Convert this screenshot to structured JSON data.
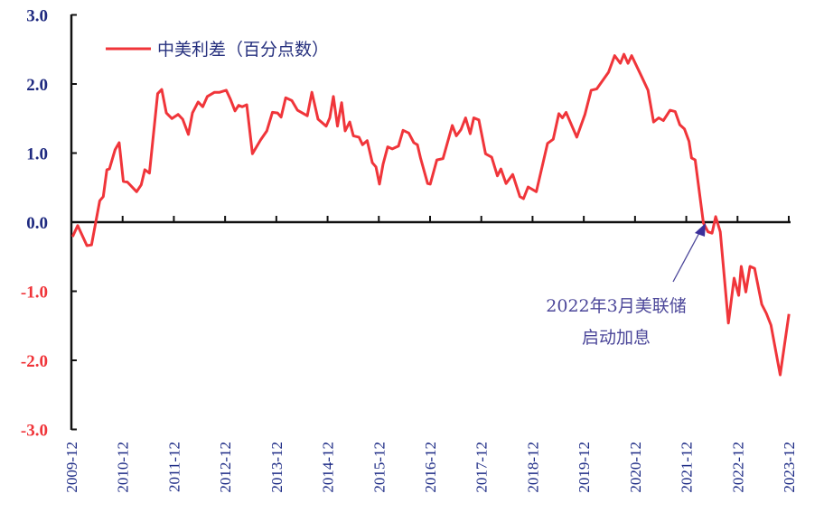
{
  "chart_data": {
    "type": "line",
    "title": "",
    "xlabel": "",
    "ylabel": "",
    "ylim": [
      -3.0,
      3.0
    ],
    "yticks": [
      "3.0",
      "2.0",
      "1.0",
      "0.0",
      "-1.0",
      "-2.0",
      "-3.0"
    ],
    "ytick_values": [
      3,
      2,
      1,
      0,
      -1,
      -2,
      -3
    ],
    "xticks": [
      "2009-12",
      "2010-12",
      "2011-12",
      "2012-12",
      "2013-12",
      "2014-12",
      "2015-12",
      "2016-12",
      "2017-12",
      "2018-12",
      "2019-12",
      "2020-12",
      "2021-12",
      "2022-12",
      "2023-12"
    ],
    "xlim_years": [
      2009.917,
      2023.917
    ],
    "grid": false,
    "legend_placement": "top-left",
    "colors": {
      "series": "#f0353a",
      "axis": "#111111",
      "pos_tick": "#1f2a80",
      "neg_tick": "#f0353a",
      "annotation": "#4b4699"
    },
    "series": [
      {
        "name": "中美利差（百分点数）",
        "x": [
          2009.94,
          2010.04,
          2010.22,
          2010.31,
          2010.47,
          2010.54,
          2010.61,
          2010.66,
          2010.77,
          2010.85,
          2010.93,
          2011.01,
          2011.19,
          2011.28,
          2011.35,
          2011.44,
          2011.6,
          2011.68,
          2011.77,
          2011.88,
          2012.0,
          2012.09,
          2012.2,
          2012.28,
          2012.39,
          2012.48,
          2012.57,
          2012.71,
          2012.81,
          2012.94,
          2013.02,
          2013.11,
          2013.18,
          2013.25,
          2013.34,
          2013.45,
          2013.61,
          2013.73,
          2013.84,
          2013.94,
          2014.01,
          2014.1,
          2014.22,
          2014.33,
          2014.52,
          2014.61,
          2014.73,
          2014.81,
          2014.89,
          2014.96,
          2015.03,
          2015.11,
          2015.19,
          2015.26,
          2015.35,
          2015.42,
          2015.53,
          2015.6,
          2015.69,
          2015.79,
          2015.86,
          2015.93,
          2016.0,
          2016.09,
          2016.18,
          2016.3,
          2016.39,
          2016.5,
          2016.6,
          2016.67,
          2016.73,
          2016.87,
          2016.92,
          2017.05,
          2017.17,
          2017.35,
          2017.43,
          2017.52,
          2017.61,
          2017.7,
          2017.77,
          2017.87,
          2018.0,
          2018.12,
          2018.23,
          2018.3,
          2018.4,
          2018.53,
          2018.67,
          2018.74,
          2018.83,
          2018.99,
          2019.21,
          2019.32,
          2019.43,
          2019.5,
          2019.57,
          2019.78,
          2019.94,
          2020.06,
          2020.17,
          2020.4,
          2020.52,
          2020.63,
          2020.7,
          2020.78,
          2020.85,
          2021.05,
          2021.17,
          2021.28,
          2021.38,
          2021.47,
          2021.6,
          2021.7,
          2021.79,
          2021.88,
          2021.97,
          2022.02,
          2022.09,
          2022.25,
          2022.34,
          2022.42,
          2022.49,
          2022.58,
          2022.74,
          2022.85,
          2022.94,
          2022.99,
          2023.08,
          2023.16,
          2023.25,
          2023.39,
          2023.48,
          2023.57,
          2023.75,
          2023.92
        ],
        "values": [
          -0.21,
          -0.05,
          -0.34,
          -0.33,
          0.31,
          0.37,
          0.76,
          0.77,
          1.05,
          1.15,
          0.59,
          0.58,
          0.44,
          0.54,
          0.76,
          0.71,
          1.86,
          1.92,
          1.58,
          1.5,
          1.56,
          1.49,
          1.27,
          1.58,
          1.74,
          1.67,
          1.82,
          1.88,
          1.88,
          1.91,
          1.78,
          1.61,
          1.69,
          1.67,
          1.7,
          0.99,
          1.19,
          1.32,
          1.59,
          1.58,
          1.52,
          1.8,
          1.76,
          1.62,
          1.54,
          1.88,
          1.49,
          1.44,
          1.39,
          1.51,
          1.82,
          1.39,
          1.73,
          1.32,
          1.45,
          1.25,
          1.23,
          1.12,
          1.18,
          0.86,
          0.8,
          0.55,
          0.84,
          1.09,
          1.06,
          1.1,
          1.33,
          1.29,
          1.15,
          1.12,
          0.93,
          0.56,
          0.55,
          0.9,
          0.92,
          1.4,
          1.25,
          1.34,
          1.51,
          1.28,
          1.51,
          1.48,
          0.99,
          0.94,
          0.67,
          0.77,
          0.56,
          0.69,
          0.37,
          0.34,
          0.51,
          0.44,
          1.14,
          1.2,
          1.57,
          1.51,
          1.59,
          1.23,
          1.56,
          1.91,
          1.93,
          2.17,
          2.41,
          2.3,
          2.43,
          2.3,
          2.41,
          2.1,
          1.91,
          1.45,
          1.51,
          1.47,
          1.62,
          1.6,
          1.41,
          1.35,
          1.17,
          0.93,
          0.9,
          -0.01,
          -0.14,
          -0.16,
          0.08,
          -0.14,
          -1.46,
          -0.81,
          -1.06,
          -0.64,
          -1.01,
          -0.64,
          -0.67,
          -1.19,
          -1.32,
          -1.49,
          -2.21,
          -1.33
        ]
      }
    ],
    "annotations": [
      {
        "lines": [
          "2022年3月美联储",
          "启动加息"
        ],
        "target_x": 2022.25,
        "target_y": 0.0
      }
    ]
  }
}
